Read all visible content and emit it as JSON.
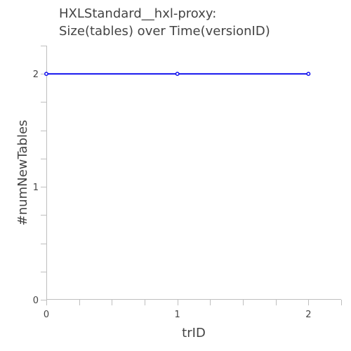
{
  "chart_data": {
    "type": "line",
    "title_lines": [
      "HXLStandard__hxl-proxy:",
      "Size(tables) over Time(versionID)"
    ],
    "xlabel": "trID",
    "ylabel": "#numNewTables",
    "x": [
      0,
      1,
      2
    ],
    "series": [
      {
        "values": [
          2,
          2,
          2
        ],
        "color": "#1111ee"
      }
    ],
    "xlim": [
      0,
      2.25
    ],
    "ylim": [
      0,
      2.25
    ],
    "x_ticks": [
      0,
      1,
      2
    ],
    "y_ticks": [
      0,
      1,
      2
    ],
    "x_minor_step": 0.25,
    "y_minor_step": 0.25,
    "grid": false,
    "axis_color": "#bfbfbf",
    "text_color": "#444444"
  }
}
